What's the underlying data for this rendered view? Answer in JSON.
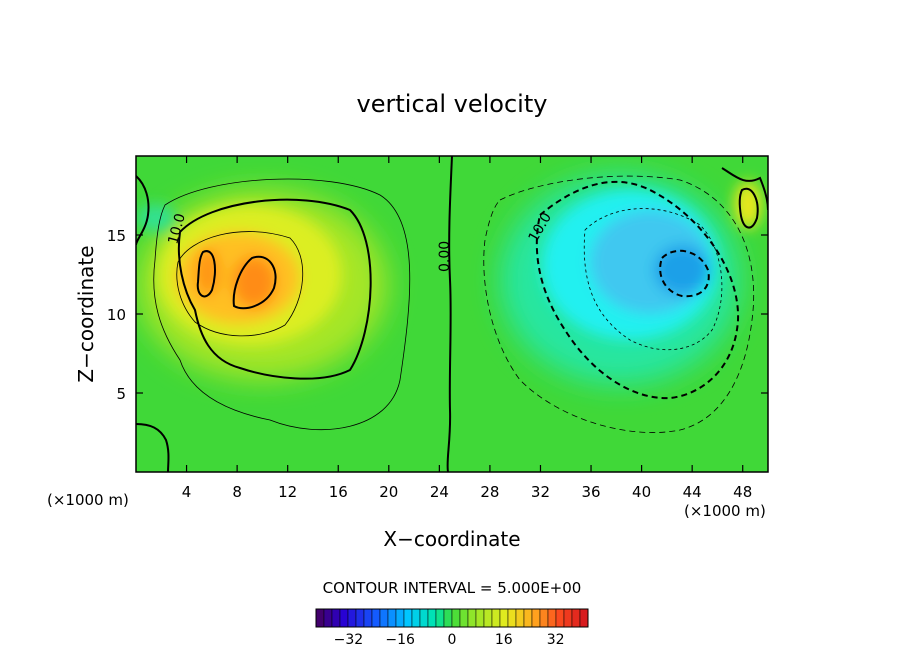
{
  "chart_data": {
    "type": "heatmap",
    "title": "vertical velocity",
    "xlabel": "X−coordinate",
    "ylabel": "Z−coordinate",
    "x_unit_left": "(×1000 m)",
    "x_unit_right": "(×1000 m)",
    "xlim": [
      0,
      50
    ],
    "ylim": [
      0,
      20
    ],
    "x_ticks": [
      4,
      8,
      12,
      16,
      20,
      24,
      28,
      32,
      36,
      40,
      44,
      48
    ],
    "y_ticks": [
      5,
      10,
      15
    ],
    "contour_interval_text": "CONTOUR INTERVAL = 5.000E+00",
    "contour_labels": [
      {
        "text": "10.0",
        "x": 3.0,
        "z": 15.0
      },
      {
        "text": "0.00",
        "x": 24.0,
        "z": 14.0
      },
      {
        "text": "10.0",
        "x": 31.5,
        "z": 15.5
      }
    ],
    "features": [
      {
        "name": "updraft",
        "center_x": 8.5,
        "center_z": 12.0,
        "peak": 30
      },
      {
        "name": "downdraft",
        "center_x": 43.0,
        "center_z": 12.5,
        "peak": -18
      },
      {
        "name": "small updraft",
        "center_x": 48.5,
        "center_z": 17.0,
        "peak": 18
      }
    ],
    "colorbar": {
      "min": -42,
      "max": 42,
      "ticks": [
        -32,
        -16,
        0,
        16,
        32
      ],
      "tick_labels": [
        "−32",
        "−16",
        "0",
        "16",
        "32"
      ]
    }
  }
}
